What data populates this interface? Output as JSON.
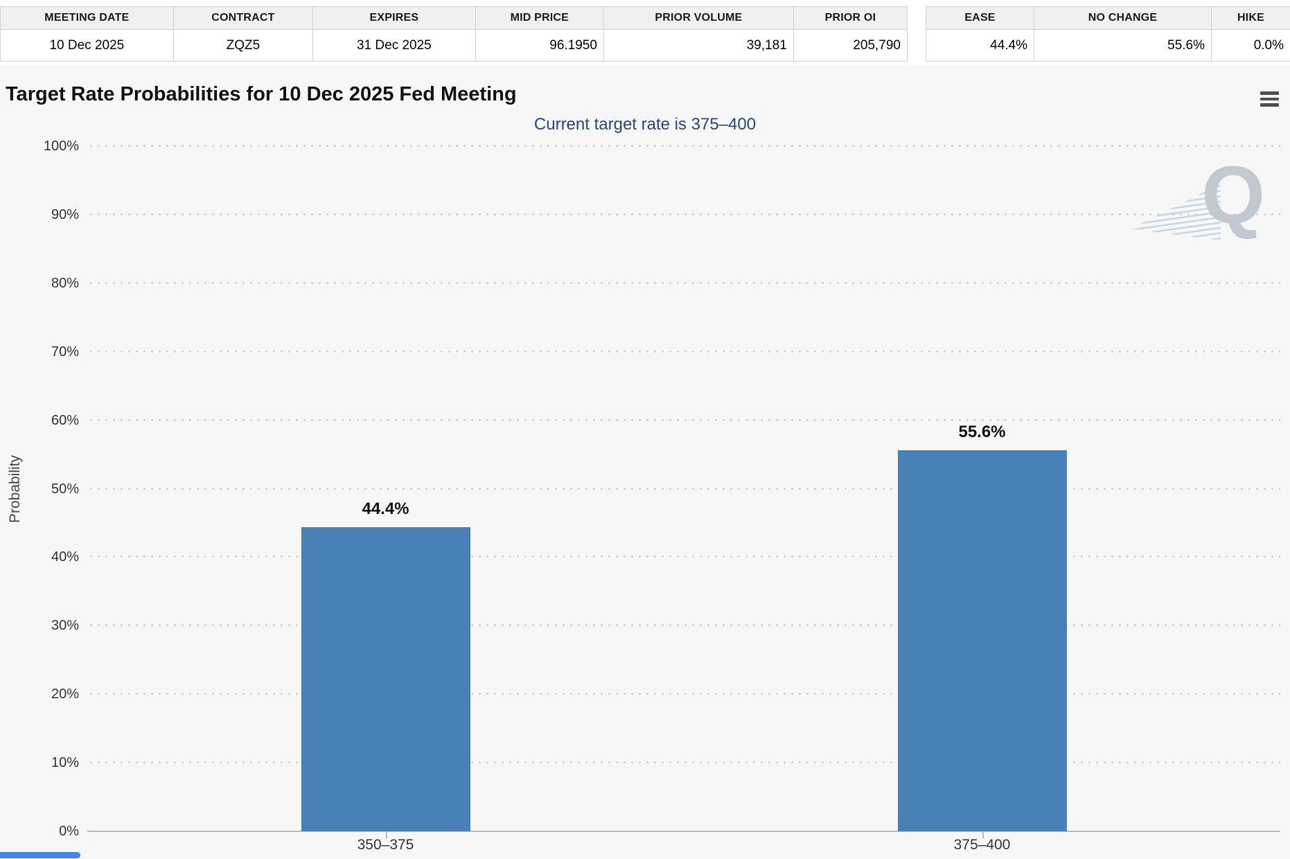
{
  "contract_table": {
    "headers": [
      "MEETING DATE",
      "CONTRACT",
      "EXPIRES",
      "MID PRICE",
      "PRIOR VOLUME",
      "PRIOR OI"
    ],
    "row": [
      "10 Dec 2025",
      "ZQZ5",
      "31 Dec 2025",
      "96.1950",
      "39,181",
      "205,790"
    ]
  },
  "summary_table": {
    "headers": [
      "EASE",
      "NO CHANGE",
      "HIKE"
    ],
    "row": [
      "44.4%",
      "55.6%",
      "0.0%"
    ]
  },
  "chart": {
    "title": "Target Rate Probabilities for 10 Dec 2025 Fed Meeting",
    "subtitle": "Current target rate is 375–400",
    "watermark_letter": "Q"
  },
  "chart_data": {
    "type": "bar",
    "title": "Target Rate Probabilities for 10 Dec 2025 Fed Meeting",
    "subtitle": "Current target rate is 375–400",
    "categories": [
      "350–375",
      "375–400"
    ],
    "values": [
      44.4,
      55.6
    ],
    "value_labels": [
      "44.4%",
      "55.6%"
    ],
    "xlabel": "",
    "ylabel": "Probability",
    "ylim": [
      0,
      100
    ],
    "ytick_step": 10,
    "ytick_suffix": "%",
    "grid": "dotted-horizontal",
    "legend_position": "none",
    "bar_color": "#4781b5"
  },
  "colors": {
    "panel_bg": "#f7f7f7",
    "subtitle": "#24487c",
    "scrollbar_blue": "#4286f5"
  }
}
